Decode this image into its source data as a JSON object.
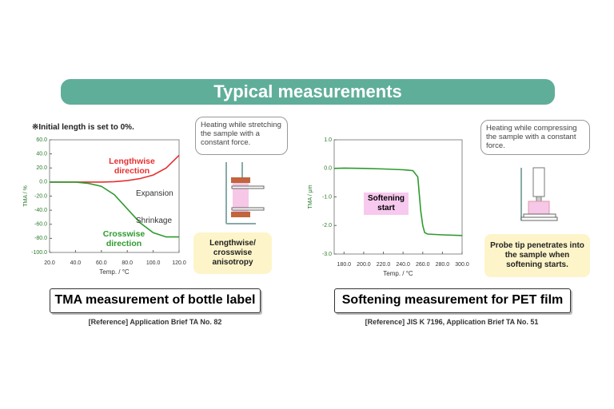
{
  "slide": {
    "title": "Typical measurements",
    "left": {
      "callout": "Heating while stretching the sample with a constant force.",
      "highlight": "Lengthwise/ crosswise anisotropy",
      "banner": "TMA measurement of bottle label",
      "reference": "[Reference]  Application Brief TA No. 82"
    },
    "right": {
      "callout": "Heating while compressing the sample with a constant force.",
      "highlight": "Probe tip penetrates into the sample when softening starts.",
      "banner": "Softening measurement for PET film",
      "reference": "[Reference]  JIS K 7196, Application Brief TA No. 51"
    }
  },
  "chart_data": [
    {
      "type": "line",
      "note": "※Initial length is set to 0%.",
      "xlabel": "Temp. / °C",
      "ylabel": "TMA / %",
      "x": [
        20,
        30,
        40,
        50,
        60,
        70,
        80,
        90,
        100,
        110,
        120
      ],
      "series": [
        {
          "name": "Lengthwise direction",
          "color": "#e53030",
          "values": [
            0,
            0,
            0,
            0,
            0,
            0.5,
            2,
            5,
            10,
            20,
            38
          ]
        },
        {
          "name": "Crosswise direction",
          "color": "#2e9a2e",
          "values": [
            0,
            0,
            0,
            -2,
            -6,
            -18,
            -38,
            -58,
            -72,
            -78,
            -78
          ]
        }
      ],
      "annotations": [
        "Expansion",
        "Shrinkage"
      ],
      "xlim": [
        20,
        120
      ],
      "xticks": [
        {
          "value": 20,
          "label": "20.0"
        },
        {
          "value": 40,
          "label": "40.0"
        },
        {
          "value": 60,
          "label": "60.0"
        },
        {
          "value": 80,
          "label": "80.0"
        },
        {
          "value": 100,
          "label": "100.0"
        },
        {
          "value": 120,
          "label": "120.0"
        }
      ],
      "ylim": [
        -100,
        60
      ],
      "yticks": [
        {
          "value": 60,
          "label": "60.0"
        },
        {
          "value": 40,
          "label": "40.0"
        },
        {
          "value": 20,
          "label": "20.0"
        },
        {
          "value": 0,
          "label": "0.0"
        },
        {
          "value": -20,
          "label": "-20.0"
        },
        {
          "value": -40,
          "label": "-40.0"
        },
        {
          "value": -60,
          "label": "-60.0"
        },
        {
          "value": -80,
          "label": "-80.0"
        },
        {
          "value": -100,
          "label": "-100.0"
        }
      ]
    },
    {
      "type": "line",
      "xlabel": "Temp. / °C",
      "ylabel": "TMA / μm",
      "x": [
        170,
        180,
        200,
        220,
        240,
        250,
        255,
        258,
        260,
        262,
        265,
        280,
        300
      ],
      "series": [
        {
          "color": "#2e9a2e",
          "values": [
            0,
            0.01,
            0,
            -0.02,
            -0.05,
            -0.08,
            -0.3,
            -1.5,
            -2.0,
            -2.25,
            -2.3,
            -2.33,
            -2.35
          ]
        }
      ],
      "annotations": [
        "Softening start"
      ],
      "xlim": [
        170,
        300
      ],
      "xticks": [
        {
          "value": 180,
          "label": "180.0"
        },
        {
          "value": 200,
          "label": "200.0"
        },
        {
          "value": 220,
          "label": "220.0"
        },
        {
          "value": 240,
          "label": "240.0"
        },
        {
          "value": 260,
          "label": "260.0"
        },
        {
          "value": 280,
          "label": "280.0"
        },
        {
          "value": 300,
          "label": "300.0"
        }
      ],
      "ylim": [
        -3,
        1
      ],
      "yticks": [
        {
          "value": 1,
          "label": "1.0"
        },
        {
          "value": 0,
          "label": "0.0"
        },
        {
          "value": -1,
          "label": "-1.0"
        },
        {
          "value": -2,
          "label": "-2.0"
        },
        {
          "value": -3,
          "label": "-3.0"
        }
      ]
    }
  ]
}
